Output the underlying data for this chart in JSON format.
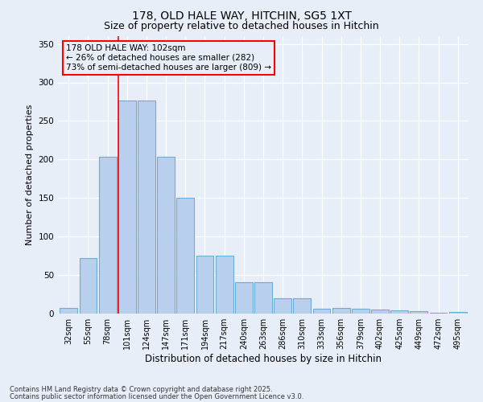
{
  "title_line1": "178, OLD HALE WAY, HITCHIN, SG5 1XT",
  "title_line2": "Size of property relative to detached houses in Hitchin",
  "xlabel": "Distribution of detached houses by size in Hitchin",
  "ylabel": "Number of detached properties",
  "categories": [
    "32sqm",
    "55sqm",
    "78sqm",
    "101sqm",
    "124sqm",
    "147sqm",
    "171sqm",
    "194sqm",
    "217sqm",
    "240sqm",
    "263sqm",
    "286sqm",
    "310sqm",
    "333sqm",
    "356sqm",
    "379sqm",
    "402sqm",
    "425sqm",
    "449sqm",
    "472sqm",
    "495sqm"
  ],
  "bar_values": [
    7,
    72,
    204,
    277,
    277,
    204,
    150,
    75,
    75,
    41,
    41,
    20,
    20,
    6,
    7,
    6,
    5,
    4,
    3,
    1,
    2
  ],
  "bar_color": "#b8d0ed",
  "bar_edge_color": "#6aaed6",
  "bar_edge_width": 0.8,
  "ylim": [
    0,
    360
  ],
  "yticks": [
    0,
    50,
    100,
    150,
    200,
    250,
    300,
    350
  ],
  "red_line_index": 3,
  "annotation_text": "178 OLD HALE WAY: 102sqm\n← 26% of detached houses are smaller (282)\n73% of semi-detached houses are larger (809) →",
  "bg_color": "#e8eef8",
  "footer_line1": "Contains HM Land Registry data © Crown copyright and database right 2025.",
  "footer_line2": "Contains public sector information licensed under the Open Government Licence v3.0.",
  "title_fontsize": 10,
  "subtitle_fontsize": 9,
  "tick_fontsize": 7,
  "ylabel_fontsize": 8,
  "xlabel_fontsize": 8.5,
  "annotation_fontsize": 7.5,
  "footer_fontsize": 6
}
